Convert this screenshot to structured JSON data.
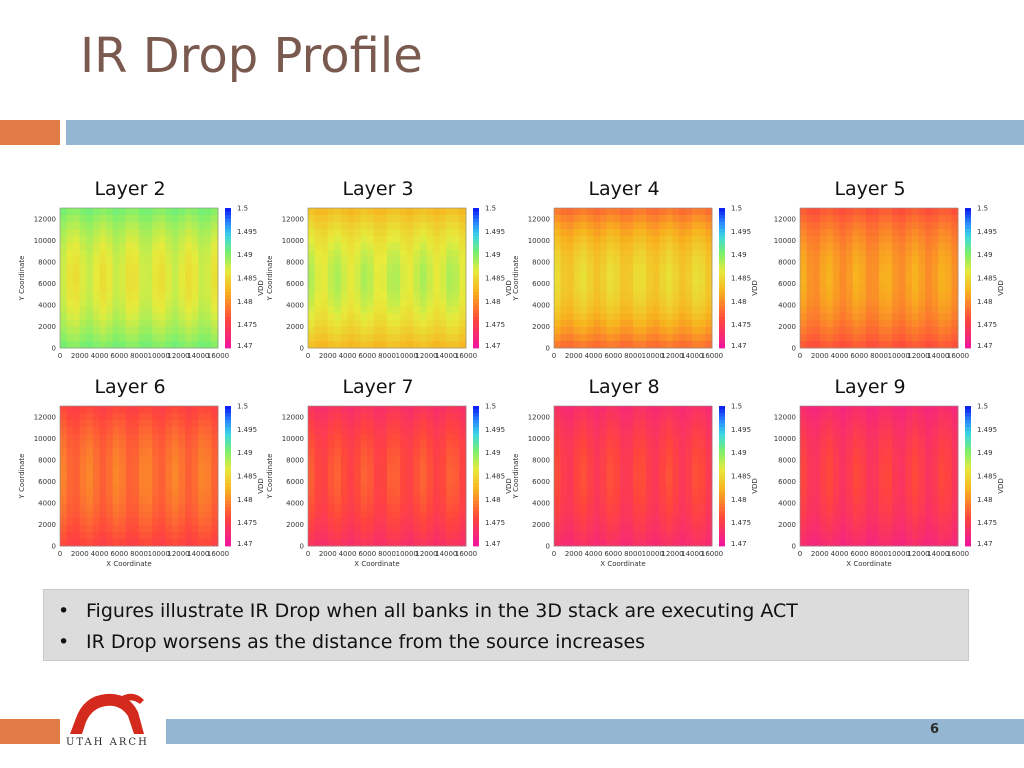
{
  "slide": {
    "title": "IR Drop Profile",
    "page_number": "6",
    "logo_text": "UTAH ARCH",
    "colors": {
      "title": "#7a5a4f",
      "orange_band": "#e07b45",
      "blue_band": "#94b6d2",
      "bullet_box": "#dcdcdc"
    }
  },
  "bullets": [
    {
      "marker": "•",
      "text": "Figures illustrate IR Drop when all banks in the 3D stack are executing ACT"
    },
    {
      "marker": "•",
      "text": "IR Drop worsens as the distance from the source increases"
    }
  ],
  "chart_data": [
    {
      "type": "heatmap",
      "title": "Layer 2",
      "xlabel": "",
      "ylabel": "Y Coordinate",
      "colorbar_label": "VDD",
      "xticks": [
        "0",
        "2000",
        "4000",
        "6000",
        "8000",
        "10000",
        "12000",
        "14000",
        "16000"
      ],
      "yticks": [
        "0",
        "2000",
        "4000",
        "6000",
        "8000",
        "10000",
        "12000"
      ],
      "colorbar_ticks": [
        "1.5",
        "1.495",
        "1.49",
        "1.485",
        "1.48",
        "1.475",
        "1.47"
      ],
      "xlim": [
        0,
        16000
      ],
      "ylim": [
        0,
        13000
      ],
      "zlim": [
        1.47,
        1.5
      ],
      "z_center": 1.4865,
      "z_edge": 1.4905
    },
    {
      "type": "heatmap",
      "title": "Layer 3",
      "xlabel": "",
      "ylabel": "Y Coordinate",
      "colorbar_label": "VDD",
      "xticks": [
        "0",
        "2000",
        "4000",
        "6000",
        "8000",
        "10000",
        "12000",
        "14000",
        "16000"
      ],
      "yticks": [
        "0",
        "2000",
        "4000",
        "6000",
        "8000",
        "10000",
        "12000"
      ],
      "colorbar_ticks": [
        "1.5",
        "1.495",
        "1.49",
        "1.485",
        "1.48",
        "1.475",
        "1.47"
      ],
      "xlim": [
        0,
        16000
      ],
      "ylim": [
        0,
        13000
      ],
      "zlim": [
        1.47,
        1.5
      ],
      "z_center": 1.4875,
      "z_edge": 1.4825
    },
    {
      "type": "heatmap",
      "title": "Layer 4",
      "xlabel": "",
      "ylabel": "Y Coordinate",
      "colorbar_label": "VDD",
      "xticks": [
        "0",
        "2000",
        "4000",
        "6000",
        "8000",
        "10000",
        "12000",
        "14000",
        "16000"
      ],
      "yticks": [
        "0",
        "2000",
        "4000",
        "6000",
        "8000",
        "10000",
        "12000"
      ],
      "colorbar_ticks": [
        "1.5",
        "1.495",
        "1.49",
        "1.485",
        "1.48",
        "1.475",
        "1.47"
      ],
      "xlim": [
        0,
        16000
      ],
      "ylim": [
        0,
        13000
      ],
      "zlim": [
        1.47,
        1.5
      ],
      "z_center": 1.4845,
      "z_edge": 1.478
    },
    {
      "type": "heatmap",
      "title": "Layer 5",
      "xlabel": "",
      "ylabel": "",
      "colorbar_label": "VDD",
      "xticks": [
        "0",
        "2000",
        "4000",
        "6000",
        "8000",
        "10000",
        "12000",
        "14000",
        "16000"
      ],
      "yticks": [
        "0",
        "2000",
        "4000",
        "6000",
        "8000",
        "10000",
        "12000"
      ],
      "colorbar_ticks": [
        "1.5",
        "1.495",
        "1.49",
        "1.485",
        "1.48",
        "1.475",
        "1.47"
      ],
      "xlim": [
        0,
        16000
      ],
      "ylim": [
        0,
        13000
      ],
      "zlim": [
        1.47,
        1.5
      ],
      "z_center": 1.481,
      "z_edge": 1.4765
    },
    {
      "type": "heatmap",
      "title": "Layer 6",
      "xlabel": "X Coordinate",
      "ylabel": "Y Coordinate",
      "colorbar_label": "VDD",
      "xticks": [
        "0",
        "2000",
        "4000",
        "6000",
        "8000",
        "10000",
        "12000",
        "14000",
        "16000"
      ],
      "yticks": [
        "0",
        "2000",
        "4000",
        "6000",
        "8000",
        "10000",
        "12000"
      ],
      "colorbar_ticks": [
        "1.5",
        "1.495",
        "1.49",
        "1.485",
        "1.48",
        "1.475",
        "1.47"
      ],
      "xlim": [
        0,
        16000
      ],
      "ylim": [
        0,
        13000
      ],
      "zlim": [
        1.47,
        1.5
      ],
      "z_center": 1.4785,
      "z_edge": 1.4755
    },
    {
      "type": "heatmap",
      "title": "Layer 7",
      "xlabel": "X Coordinate",
      "ylabel": "Y Coordinate",
      "colorbar_label": "VDD",
      "xticks": [
        "0",
        "2000",
        "4000",
        "6000",
        "8000",
        "10000",
        "12000",
        "14000",
        "16000"
      ],
      "yticks": [
        "0",
        "2000",
        "4000",
        "6000",
        "8000",
        "10000",
        "12000"
      ],
      "colorbar_ticks": [
        "1.5",
        "1.495",
        "1.49",
        "1.485",
        "1.48",
        "1.475",
        "1.47"
      ],
      "xlim": [
        0,
        16000
      ],
      "ylim": [
        0,
        13000
      ],
      "zlim": [
        1.47,
        1.5
      ],
      "z_center": 1.4765,
      "z_edge": 1.4735
    },
    {
      "type": "heatmap",
      "title": "Layer 8",
      "xlabel": "X Coordinate",
      "ylabel": "Y Coordinate",
      "colorbar_label": "VDD",
      "xticks": [
        "0",
        "2000",
        "4000",
        "6000",
        "8000",
        "10000",
        "12000",
        "14000",
        "16000"
      ],
      "yticks": [
        "0",
        "2000",
        "4000",
        "6000",
        "8000",
        "10000",
        "12000"
      ],
      "colorbar_ticks": [
        "1.5",
        "1.495",
        "1.49",
        "1.485",
        "1.48",
        "1.475",
        "1.47"
      ],
      "xlim": [
        0,
        16000
      ],
      "ylim": [
        0,
        13000
      ],
      "zlim": [
        1.47,
        1.5
      ],
      "z_center": 1.4755,
      "z_edge": 1.473
    },
    {
      "type": "heatmap",
      "title": "Layer 9",
      "xlabel": "X Coordinate",
      "ylabel": "",
      "colorbar_label": "VDD",
      "xticks": [
        "0",
        "2000",
        "4000",
        "6000",
        "8000",
        "10000",
        "12000",
        "14000",
        "16000"
      ],
      "yticks": [
        "0",
        "2000",
        "4000",
        "6000",
        "8000",
        "10000",
        "12000"
      ],
      "colorbar_ticks": [
        "1.5",
        "1.495",
        "1.49",
        "1.485",
        "1.48",
        "1.475",
        "1.47"
      ],
      "xlim": [
        0,
        16000
      ],
      "ylim": [
        0,
        13000
      ],
      "zlim": [
        1.47,
        1.5
      ],
      "z_center": 1.475,
      "z_edge": 1.4725
    }
  ]
}
